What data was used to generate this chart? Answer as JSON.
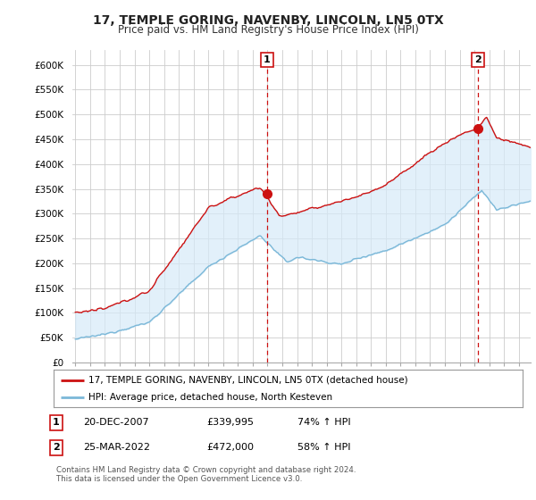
{
  "title": "17, TEMPLE GORING, NAVENBY, LINCOLN, LN5 0TX",
  "subtitle": "Price paid vs. HM Land Registry's House Price Index (HPI)",
  "ylabel_ticks": [
    "£0",
    "£50K",
    "£100K",
    "£150K",
    "£200K",
    "£250K",
    "£300K",
    "£350K",
    "£400K",
    "£450K",
    "£500K",
    "£550K",
    "£600K"
  ],
  "ytick_vals": [
    0,
    50000,
    100000,
    150000,
    200000,
    250000,
    300000,
    350000,
    400000,
    450000,
    500000,
    550000,
    600000
  ],
  "ylim": [
    0,
    630000
  ],
  "xtick_years": [
    1995,
    1996,
    1997,
    1998,
    1999,
    2000,
    2001,
    2002,
    2003,
    2004,
    2005,
    2006,
    2007,
    2008,
    2009,
    2010,
    2011,
    2012,
    2013,
    2014,
    2015,
    2016,
    2017,
    2018,
    2019,
    2020,
    2021,
    2022,
    2023,
    2024,
    2025
  ],
  "sale1_x": 2007.97,
  "sale1_y": 339995,
  "sale1_label": "1",
  "sale2_x": 2022.23,
  "sale2_y": 472000,
  "sale2_label": "2",
  "hpi_color": "#7bb8d8",
  "hpi_fill_color": "#d6eaf8",
  "price_color": "#cc1111",
  "dashed_color": "#cc1111",
  "background_color": "#ffffff",
  "grid_color": "#cccccc",
  "legend_label_price": "17, TEMPLE GORING, NAVENBY, LINCOLN, LN5 0TX (detached house)",
  "legend_label_hpi": "HPI: Average price, detached house, North Kesteven",
  "table_row1": [
    "1",
    "20-DEC-2007",
    "£339,995",
    "74% ↑ HPI"
  ],
  "table_row2": [
    "2",
    "25-MAR-2022",
    "£472,000",
    "58% ↑ HPI"
  ],
  "footnote": "Contains HM Land Registry data © Crown copyright and database right 2024.\nThis data is licensed under the Open Government Licence v3.0.",
  "sale1_vline_x": 2007.97,
  "sale2_vline_x": 2022.23
}
